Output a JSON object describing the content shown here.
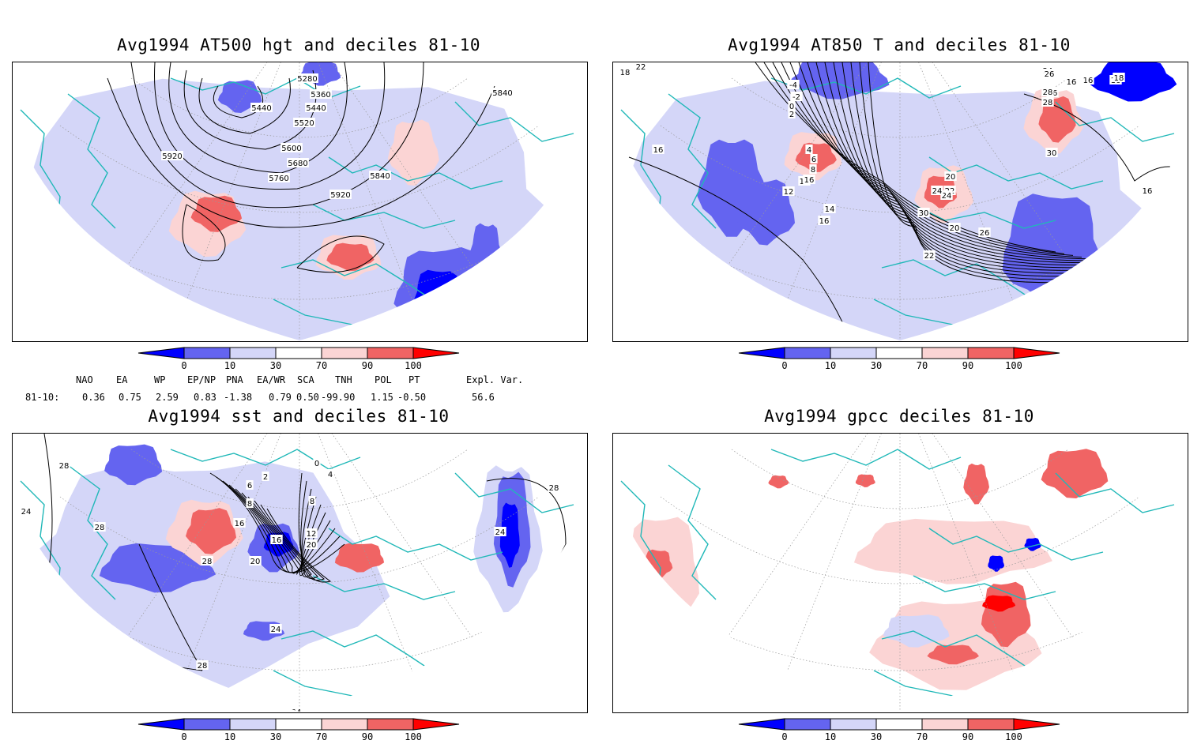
{
  "colors": {
    "dark_blue": "#0000ff",
    "mid_blue": "#6464f0",
    "light_blue": "#d4d6f8",
    "light_red": "#fbd4d4",
    "mid_red": "#f06464",
    "dark_red": "#ff0000",
    "coast": "#20b8b8",
    "contour": "#000000"
  },
  "colorbar": {
    "ticks": [
      "0",
      "10",
      "30",
      "70",
      "90",
      "100"
    ]
  },
  "panels": [
    {
      "title": "Avg1994 AT500 hgt and deciles 81-10",
      "contour_labels": [
        "5280",
        "5360",
        "5440",
        "5440",
        "5520",
        "5600",
        "5680",
        "5760",
        "5840",
        "5840",
        "5920",
        "5920"
      ]
    },
    {
      "title": "Avg1994 AT850 T and deciles 81-10",
      "contour_labels": [
        "18",
        "20",
        "22",
        "-4",
        "-2",
        "0",
        "2",
        "4",
        "6",
        "8",
        "10",
        "12",
        "14",
        "16",
        "16",
        "16",
        "16",
        "16",
        "16",
        "16",
        "18",
        "18",
        "18",
        "20",
        "20",
        "22",
        "22",
        "24",
        "24",
        "24",
        "26",
        "26",
        "26",
        "26",
        "28",
        "28",
        "30",
        "30"
      ]
    },
    {
      "title": "Avg1994 sst and deciles 81-10",
      "contour_labels": [
        "28",
        "24",
        "28",
        "28",
        "28",
        "24",
        "24",
        "0",
        "2",
        "4",
        "6",
        "8",
        "8",
        "12",
        "16",
        "16",
        "20",
        "20",
        "28",
        "24"
      ]
    },
    {
      "title": "Avg1994 gpcc deciles 81-10",
      "contour_labels": []
    }
  ],
  "indices": {
    "row_label": "81-10:",
    "columns": [
      {
        "name": "NAO",
        "value": "0.36"
      },
      {
        "name": "EA",
        "value": "0.75"
      },
      {
        "name": "WP",
        "value": "2.59"
      },
      {
        "name": "EP/NP",
        "value": "0.83"
      },
      {
        "name": "PNA",
        "value": "-1.38"
      },
      {
        "name": "EA/WR",
        "value": "0.79"
      },
      {
        "name": "SCA",
        "value": "0.50"
      },
      {
        "name": "TNH",
        "value": "-99.90"
      },
      {
        "name": "POL",
        "value": "1.15"
      },
      {
        "name": "PT",
        "value": "-0.50"
      },
      {
        "name": "Expl. Var.",
        "value": "56.6"
      }
    ]
  }
}
